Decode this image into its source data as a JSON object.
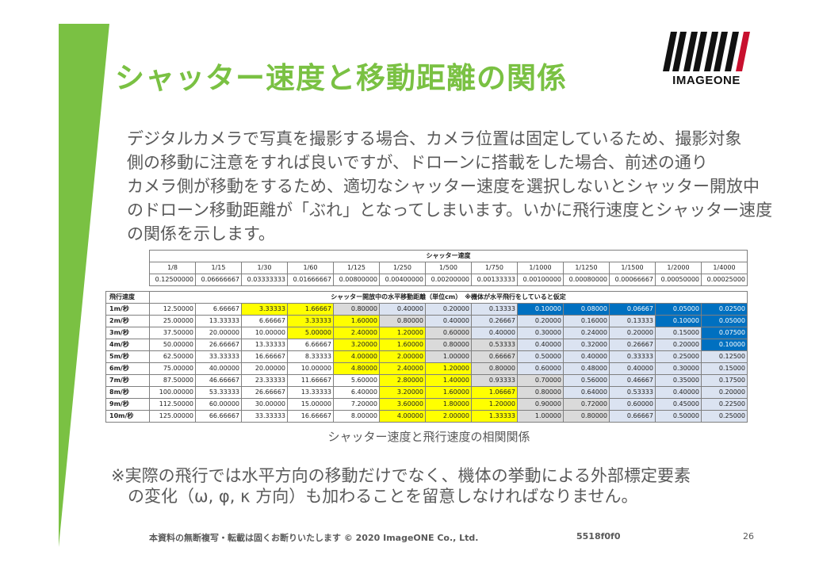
{
  "title": "シャッター速度と移動距離の関係",
  "logo": {
    "text": "IMAGEONE",
    "color": "#c8102e"
  },
  "paragraph": [
    "デジタルカメラで写真を撮影する場合、カメラ位置は固定しているため、撮影対象",
    "側の移動に注意をすれば良いですが、ドローンに搭載をした場合、前述の通り",
    "カメラ側が移動をするため、適切なシャッター速度を選択しないとシャッター開放中",
    "のドローン移動距離が「ぶれ」となってしまいます。いかに飛行速度とシャッター速度",
    "の関係を示します。"
  ],
  "table": {
    "shutter_header": "シャッター速度",
    "denominators": [
      "1/8",
      "1/15",
      "1/30",
      "1/60",
      "1/125",
      "1/250",
      "1/500",
      "1/750",
      "1/1000",
      "1/1250",
      "1/1500",
      "1/2000",
      "1/4000"
    ],
    "seconds": [
      "0.12500000",
      "0.06666667",
      "0.03333333",
      "0.01666667",
      "0.00800000",
      "0.00400000",
      "0.00200000",
      "0.00133333",
      "0.00100000",
      "0.00080000",
      "0.00066667",
      "0.00050000",
      "0.00025000"
    ],
    "speed_header": "飛行速度",
    "distance_header": "シャッター開放中の水平移動距離（単位cm）　※機体が水平飛行をしていると仮定",
    "rows": [
      {
        "speed": "1m/秒",
        "values": [
          "12.50000",
          "6.66667",
          "3.33333",
          "1.66667",
          "0.80000",
          "0.40000",
          "0.20000",
          "0.13333",
          "0.10000",
          "0.08000",
          "0.06667",
          "0.05000",
          "0.02500"
        ],
        "shade": [
          "",
          "",
          "y",
          "y",
          "g",
          "c",
          "c",
          "c",
          "b",
          "b",
          "b",
          "b",
          "b"
        ]
      },
      {
        "speed": "2m/秒",
        "values": [
          "25.00000",
          "13.33333",
          "6.66667",
          "3.33333",
          "1.60000",
          "0.80000",
          "0.40000",
          "0.26667",
          "0.20000",
          "0.16000",
          "0.13333",
          "0.10000",
          "0.05000"
        ],
        "shade": [
          "",
          "",
          "",
          "y",
          "y",
          "g",
          "c",
          "c",
          "c",
          "c",
          "c",
          "b",
          "b"
        ]
      },
      {
        "speed": "3m/秒",
        "values": [
          "37.50000",
          "20.00000",
          "10.00000",
          "5.00000",
          "2.40000",
          "1.20000",
          "0.60000",
          "0.40000",
          "0.30000",
          "0.24000",
          "0.20000",
          "0.15000",
          "0.07500"
        ],
        "shade": [
          "",
          "",
          "",
          "y",
          "y",
          "y",
          "g",
          "c",
          "c",
          "c",
          "c",
          "c",
          "b"
        ]
      },
      {
        "speed": "4m/秒",
        "values": [
          "50.00000",
          "26.66667",
          "13.33333",
          "6.66667",
          "3.20000",
          "1.60000",
          "0.80000",
          "0.53333",
          "0.40000",
          "0.32000",
          "0.26667",
          "0.20000",
          "0.10000"
        ],
        "shade": [
          "",
          "",
          "",
          "",
          "y",
          "y",
          "g",
          "g",
          "c",
          "c",
          "c",
          "c",
          "b"
        ]
      },
      {
        "speed": "5m/秒",
        "values": [
          "62.50000",
          "33.33333",
          "16.66667",
          "8.33333",
          "4.00000",
          "2.00000",
          "1.00000",
          "0.66667",
          "0.50000",
          "0.40000",
          "0.33333",
          "0.25000",
          "0.12500"
        ],
        "shade": [
          "",
          "",
          "",
          "",
          "y",
          "y",
          "g",
          "g",
          "c",
          "c",
          "c",
          "c",
          "c"
        ]
      },
      {
        "speed": "6m/秒",
        "values": [
          "75.00000",
          "40.00000",
          "20.00000",
          "10.00000",
          "4.80000",
          "2.40000",
          "1.20000",
          "0.80000",
          "0.60000",
          "0.48000",
          "0.40000",
          "0.30000",
          "0.15000"
        ],
        "shade": [
          "",
          "",
          "",
          "",
          "y",
          "y",
          "y",
          "g",
          "c",
          "c",
          "c",
          "c",
          "c"
        ]
      },
      {
        "speed": "7m/秒",
        "values": [
          "87.50000",
          "46.66667",
          "23.33333",
          "11.66667",
          "5.60000",
          "2.80000",
          "1.40000",
          "0.93333",
          "0.70000",
          "0.56000",
          "0.46667",
          "0.35000",
          "0.17500"
        ],
        "shade": [
          "",
          "",
          "",
          "",
          "",
          "y",
          "y",
          "g",
          "g",
          "c",
          "c",
          "c",
          "c"
        ]
      },
      {
        "speed": "8m/秒",
        "values": [
          "100.00000",
          "53.33333",
          "26.66667",
          "13.33333",
          "6.40000",
          "3.20000",
          "1.60000",
          "1.06667",
          "0.80000",
          "0.64000",
          "0.53333",
          "0.40000",
          "0.20000"
        ],
        "shade": [
          "",
          "",
          "",
          "",
          "",
          "y",
          "y",
          "y",
          "g",
          "c",
          "c",
          "c",
          "c"
        ]
      },
      {
        "speed": "9m/秒",
        "values": [
          "112.50000",
          "60.00000",
          "30.00000",
          "15.00000",
          "7.20000",
          "3.60000",
          "1.80000",
          "1.20000",
          "0.90000",
          "0.72000",
          "0.60000",
          "0.45000",
          "0.22500"
        ],
        "shade": [
          "",
          "",
          "",
          "",
          "",
          "y",
          "y",
          "y",
          "g",
          "g",
          "c",
          "c",
          "c"
        ]
      },
      {
        "speed": "10m/秒",
        "values": [
          "125.00000",
          "66.66667",
          "33.33333",
          "16.66667",
          "8.00000",
          "4.00000",
          "2.00000",
          "1.33333",
          "1.00000",
          "0.80000",
          "0.66667",
          "0.50000",
          "0.25000"
        ],
        "shade": [
          "",
          "",
          "",
          "",
          "",
          "y",
          "y",
          "y",
          "g",
          "g",
          "c",
          "c",
          "c"
        ]
      }
    ]
  },
  "caption": "シャッター速度と飛行速度の相関関係",
  "note": [
    "※実際の飛行では水平方向の移動だけでなく、機体の挙動による外部標定要素",
    "　の変化（ω, φ, κ 方向）も加わることを留意しなければなりません。"
  ],
  "footer": "本資料の無断複写・転載は固くお断りいたします © 2020 ImageONE Co., Ltd.",
  "code": "5518f0f0",
  "page_number": "26",
  "colors": {
    "accent_green": "#7ac143",
    "highlight_yellow": "#ffff00",
    "highlight_blue": "#0070c0",
    "light_blue": "#dbe3f1",
    "light_gray": "#dadada"
  }
}
